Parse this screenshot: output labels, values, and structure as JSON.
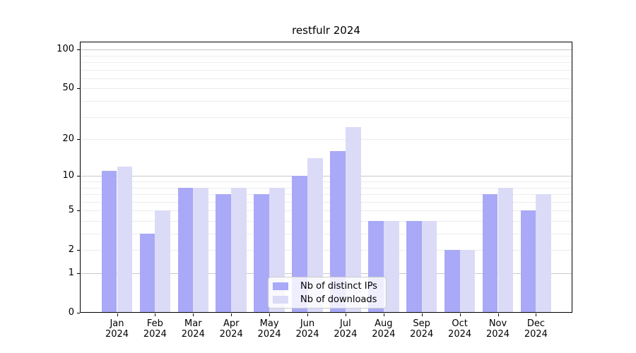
{
  "title": "restfulr 2024",
  "chart_data": {
    "type": "bar",
    "title": "restfulr 2024",
    "categories": [
      "Jan",
      "Feb",
      "Mar",
      "Apr",
      "May",
      "Jun",
      "Jul",
      "Aug",
      "Sep",
      "Oct",
      "Nov",
      "Dec"
    ],
    "year_label": "2024",
    "series": [
      {
        "name": "Nb of distinct IPs",
        "color": "#a9a9f7",
        "values": [
          11,
          3,
          8,
          7,
          7,
          10,
          16,
          4,
          4,
          2,
          7,
          5
        ]
      },
      {
        "name": "Nb of downloads",
        "color": "#dbdbf8",
        "values": [
          12,
          5,
          8,
          8,
          8,
          14,
          25,
          4,
          4,
          2,
          8,
          7
        ]
      }
    ],
    "xlabel": "",
    "ylabel": "",
    "yscale": "log10(1+x)",
    "ylim": [
      0,
      100
    ],
    "y_ticks": [
      0,
      1,
      2,
      5,
      10,
      20,
      50,
      100
    ],
    "grid": true,
    "grid_major_values": [
      1,
      10,
      100
    ],
    "grid_minor_values": [
      2,
      3,
      4,
      5,
      6,
      7,
      8,
      9,
      20,
      30,
      40,
      50,
      60,
      70,
      80,
      90
    ],
    "legend_position": "lower center"
  },
  "colors": {
    "grid_major": "#c9c9c9",
    "grid_minor": "#ececec",
    "axis": "#000000",
    "legend_border": "#cccccc",
    "background": "#ffffff"
  }
}
